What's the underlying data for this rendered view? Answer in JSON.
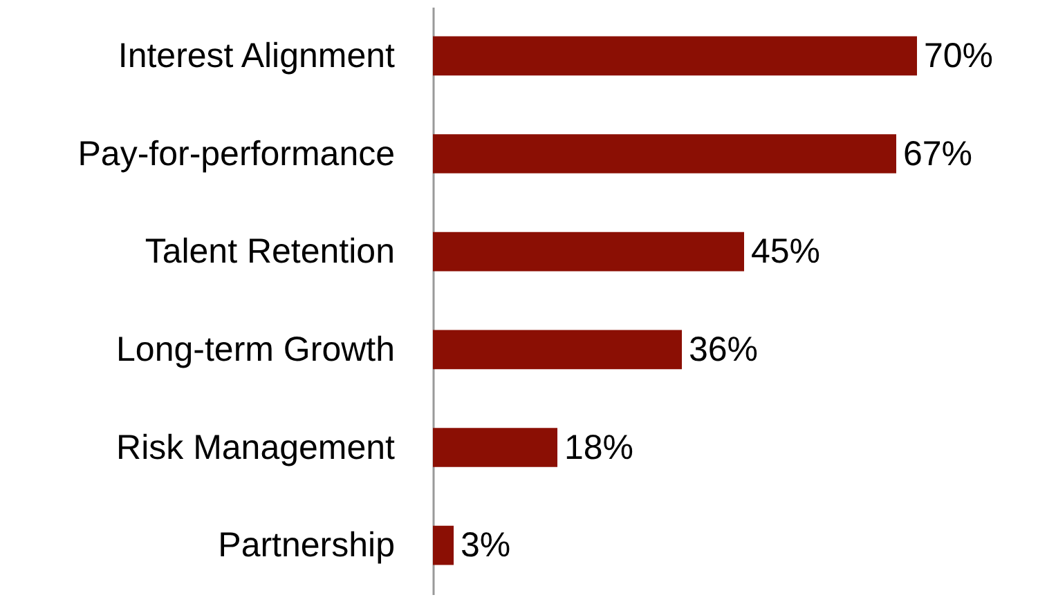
{
  "chart_data": {
    "type": "bar",
    "orientation": "horizontal",
    "categories": [
      "Interest Alignment",
      "Pay-for-performance",
      "Talent Retention",
      "Long-term Growth",
      "Risk Management",
      "Partnership"
    ],
    "values": [
      70,
      67,
      45,
      36,
      18,
      3
    ],
    "value_labels": [
      "70%",
      "67%",
      "45%",
      "36%",
      "18%",
      "3%"
    ],
    "color": "#8b0f04"
  }
}
